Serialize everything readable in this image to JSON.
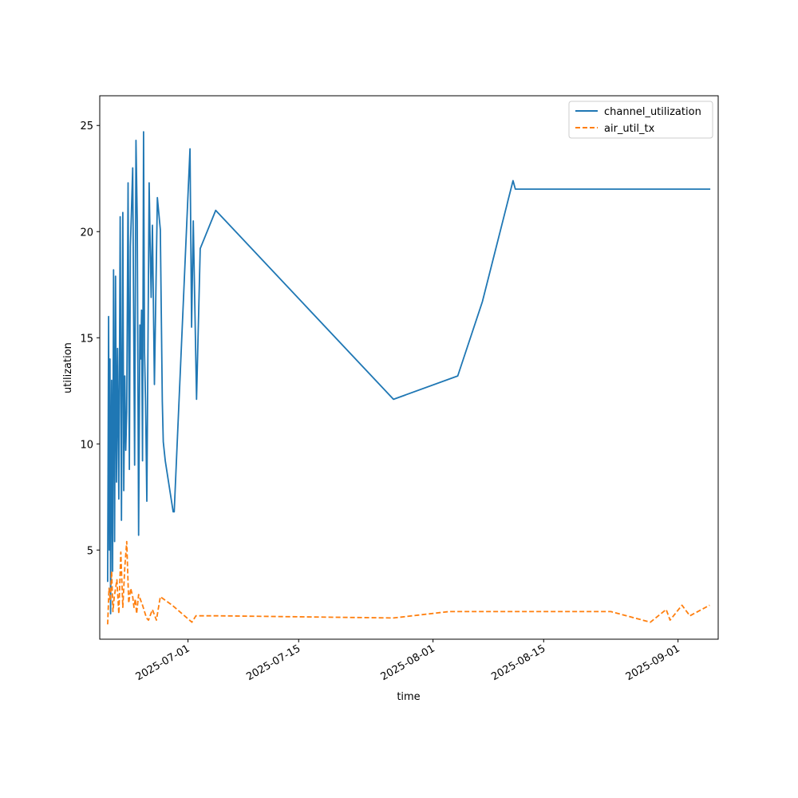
{
  "chart_data": {
    "type": "line",
    "title": "",
    "xlabel": "time",
    "ylabel": "utilization",
    "x_axis_type": "date",
    "xlim": [
      "2025-06-19T20:00",
      "2025-09-06T02:00"
    ],
    "ylim": [
      0.8,
      26.4
    ],
    "yticks": [
      5,
      10,
      15,
      20,
      25
    ],
    "xticks": [
      "2025-07-01",
      "2025-07-15",
      "2025-08-01",
      "2025-08-15",
      "2025-09-01"
    ],
    "xtick_rotation": 30,
    "grid": false,
    "legend_position": "upper right",
    "series": [
      {
        "name": "channel_utilization",
        "color": "#1f77b4",
        "dash": "solid",
        "x": [
          "2025-06-20T20:00",
          "2025-06-20T23:00",
          "2025-06-21T01:00",
          "2025-06-21T03:00",
          "2025-06-21T05:00",
          "2025-06-21T08:00",
          "2025-06-21T11:00",
          "2025-06-21T14:00",
          "2025-06-21T17:00",
          "2025-06-21T20:00",
          "2025-06-21T23:00",
          "2025-06-22T02:00",
          "2025-06-22T06:00",
          "2025-06-22T10:00",
          "2025-06-22T14:00",
          "2025-06-22T18:00",
          "2025-06-22T21:00",
          "2025-06-23T00:00",
          "2025-06-23T03:00",
          "2025-06-23T06:00",
          "2025-06-23T10:00",
          "2025-06-23T14:00",
          "2025-06-23T17:00",
          "2025-06-24T00:00",
          "2025-06-24T06:00",
          "2025-06-24T10:00",
          "2025-06-24T14:00",
          "2025-06-24T18:00",
          "2025-06-24T22:00",
          "2025-06-25T00:00",
          "2025-06-25T03:00",
          "2025-06-25T06:00",
          "2025-06-25T09:00",
          "2025-06-25T12:00",
          "2025-06-25T15:00",
          "2025-06-25T19:00",
          "2025-06-26T02:00",
          "2025-06-26T05:00",
          "2025-06-26T08:00",
          "2025-06-26T12:00",
          "2025-06-26T18:00",
          "2025-06-27T03:00",
          "2025-06-27T12:00",
          "2025-06-27T18:00",
          "2025-06-27T21:00",
          "2025-06-28T03:00",
          "2025-06-29T03:00",
          "2025-06-29T06:00",
          "2025-07-01T06:00",
          "2025-07-01T11:00",
          "2025-07-01T16:00",
          "2025-07-02T02:00",
          "2025-07-02T13:00",
          "2025-07-04T12:00",
          "2025-07-27T00:00",
          "2025-08-04T03:00",
          "2025-08-07T06:00",
          "2025-08-11T03:00",
          "2025-08-11T10:00",
          "2025-08-23T08:00",
          "2025-08-28T17:00",
          "2025-08-30T17:00",
          "2025-08-30T23:00",
          "2025-09-01T13:00",
          "2025-09-02T12:00",
          "2025-09-05T02:00"
        ],
        "values": [
          3.5,
          16.0,
          5.0,
          14.0,
          2.0,
          13.0,
          4.0,
          18.2,
          5.4,
          17.9,
          8.2,
          14.5,
          7.4,
          20.7,
          6.4,
          20.9,
          7.8,
          13.2,
          9.7,
          11.5,
          22.3,
          8.8,
          19.3,
          23.0,
          9.0,
          24.3,
          20.5,
          5.7,
          15.6,
          14.0,
          16.3,
          9.2,
          24.7,
          14.3,
          12.0,
          7.3,
          22.3,
          19.5,
          16.9,
          20.3,
          12.8,
          21.6,
          20.1,
          12.0,
          10.1,
          9.2,
          6.8,
          6.8,
          23.9,
          15.5,
          20.5,
          12.1,
          19.2,
          21.0,
          12.1,
          13.2,
          16.7,
          22.4,
          22.0,
          22.0,
          22.0,
          22.0,
          22.0,
          22.0,
          22.0,
          22.0
        ]
      },
      {
        "name": "air_util_tx",
        "color": "#ff7f0e",
        "dash": "dashed",
        "x": [
          "2025-06-20T20:00",
          "2025-06-21T00:00",
          "2025-06-21T04:00",
          "2025-06-21T08:00",
          "2025-06-21T12:00",
          "2025-06-21T16:00",
          "2025-06-22T00:00",
          "2025-06-22T06:00",
          "2025-06-22T12:00",
          "2025-06-22T18:00",
          "2025-06-23T00:00",
          "2025-06-23T06:00",
          "2025-06-23T12:00",
          "2025-06-23T18:00",
          "2025-06-24T00:00",
          "2025-06-24T04:00",
          "2025-06-24T08:00",
          "2025-06-24T12:00",
          "2025-06-24T18:00",
          "2025-06-25T06:00",
          "2025-06-25T18:00",
          "2025-06-26T00:00",
          "2025-06-26T12:00",
          "2025-06-27T00:00",
          "2025-06-27T12:00",
          "2025-06-29T00:00",
          "2025-07-01T12:00",
          "2025-07-02T00:00",
          "2025-07-02T12:00",
          "2025-07-05T00:00",
          "2025-07-27T00:00",
          "2025-08-03T00:00",
          "2025-08-07T00:00",
          "2025-08-11T00:00",
          "2025-08-11T12:00",
          "2025-08-23T12:00",
          "2025-08-28T12:00",
          "2025-08-30T12:00",
          "2025-08-31T00:00",
          "2025-09-01T12:00",
          "2025-09-02T12:00",
          "2025-09-05T00:00"
        ],
        "values": [
          1.5,
          3.2,
          2.6,
          4.0,
          2.1,
          2.8,
          3.6,
          2.0,
          4.9,
          2.3,
          4.2,
          5.4,
          2.5,
          3.2,
          2.8,
          2.3,
          2.7,
          2.0,
          2.9,
          2.4,
          1.8,
          1.7,
          2.2,
          1.7,
          2.8,
          2.4,
          1.6,
          1.9,
          1.9,
          1.9,
          1.8,
          2.1,
          2.1,
          2.1,
          2.1,
          2.1,
          1.6,
          2.2,
          1.7,
          2.4,
          1.9,
          2.4
        ]
      }
    ]
  }
}
